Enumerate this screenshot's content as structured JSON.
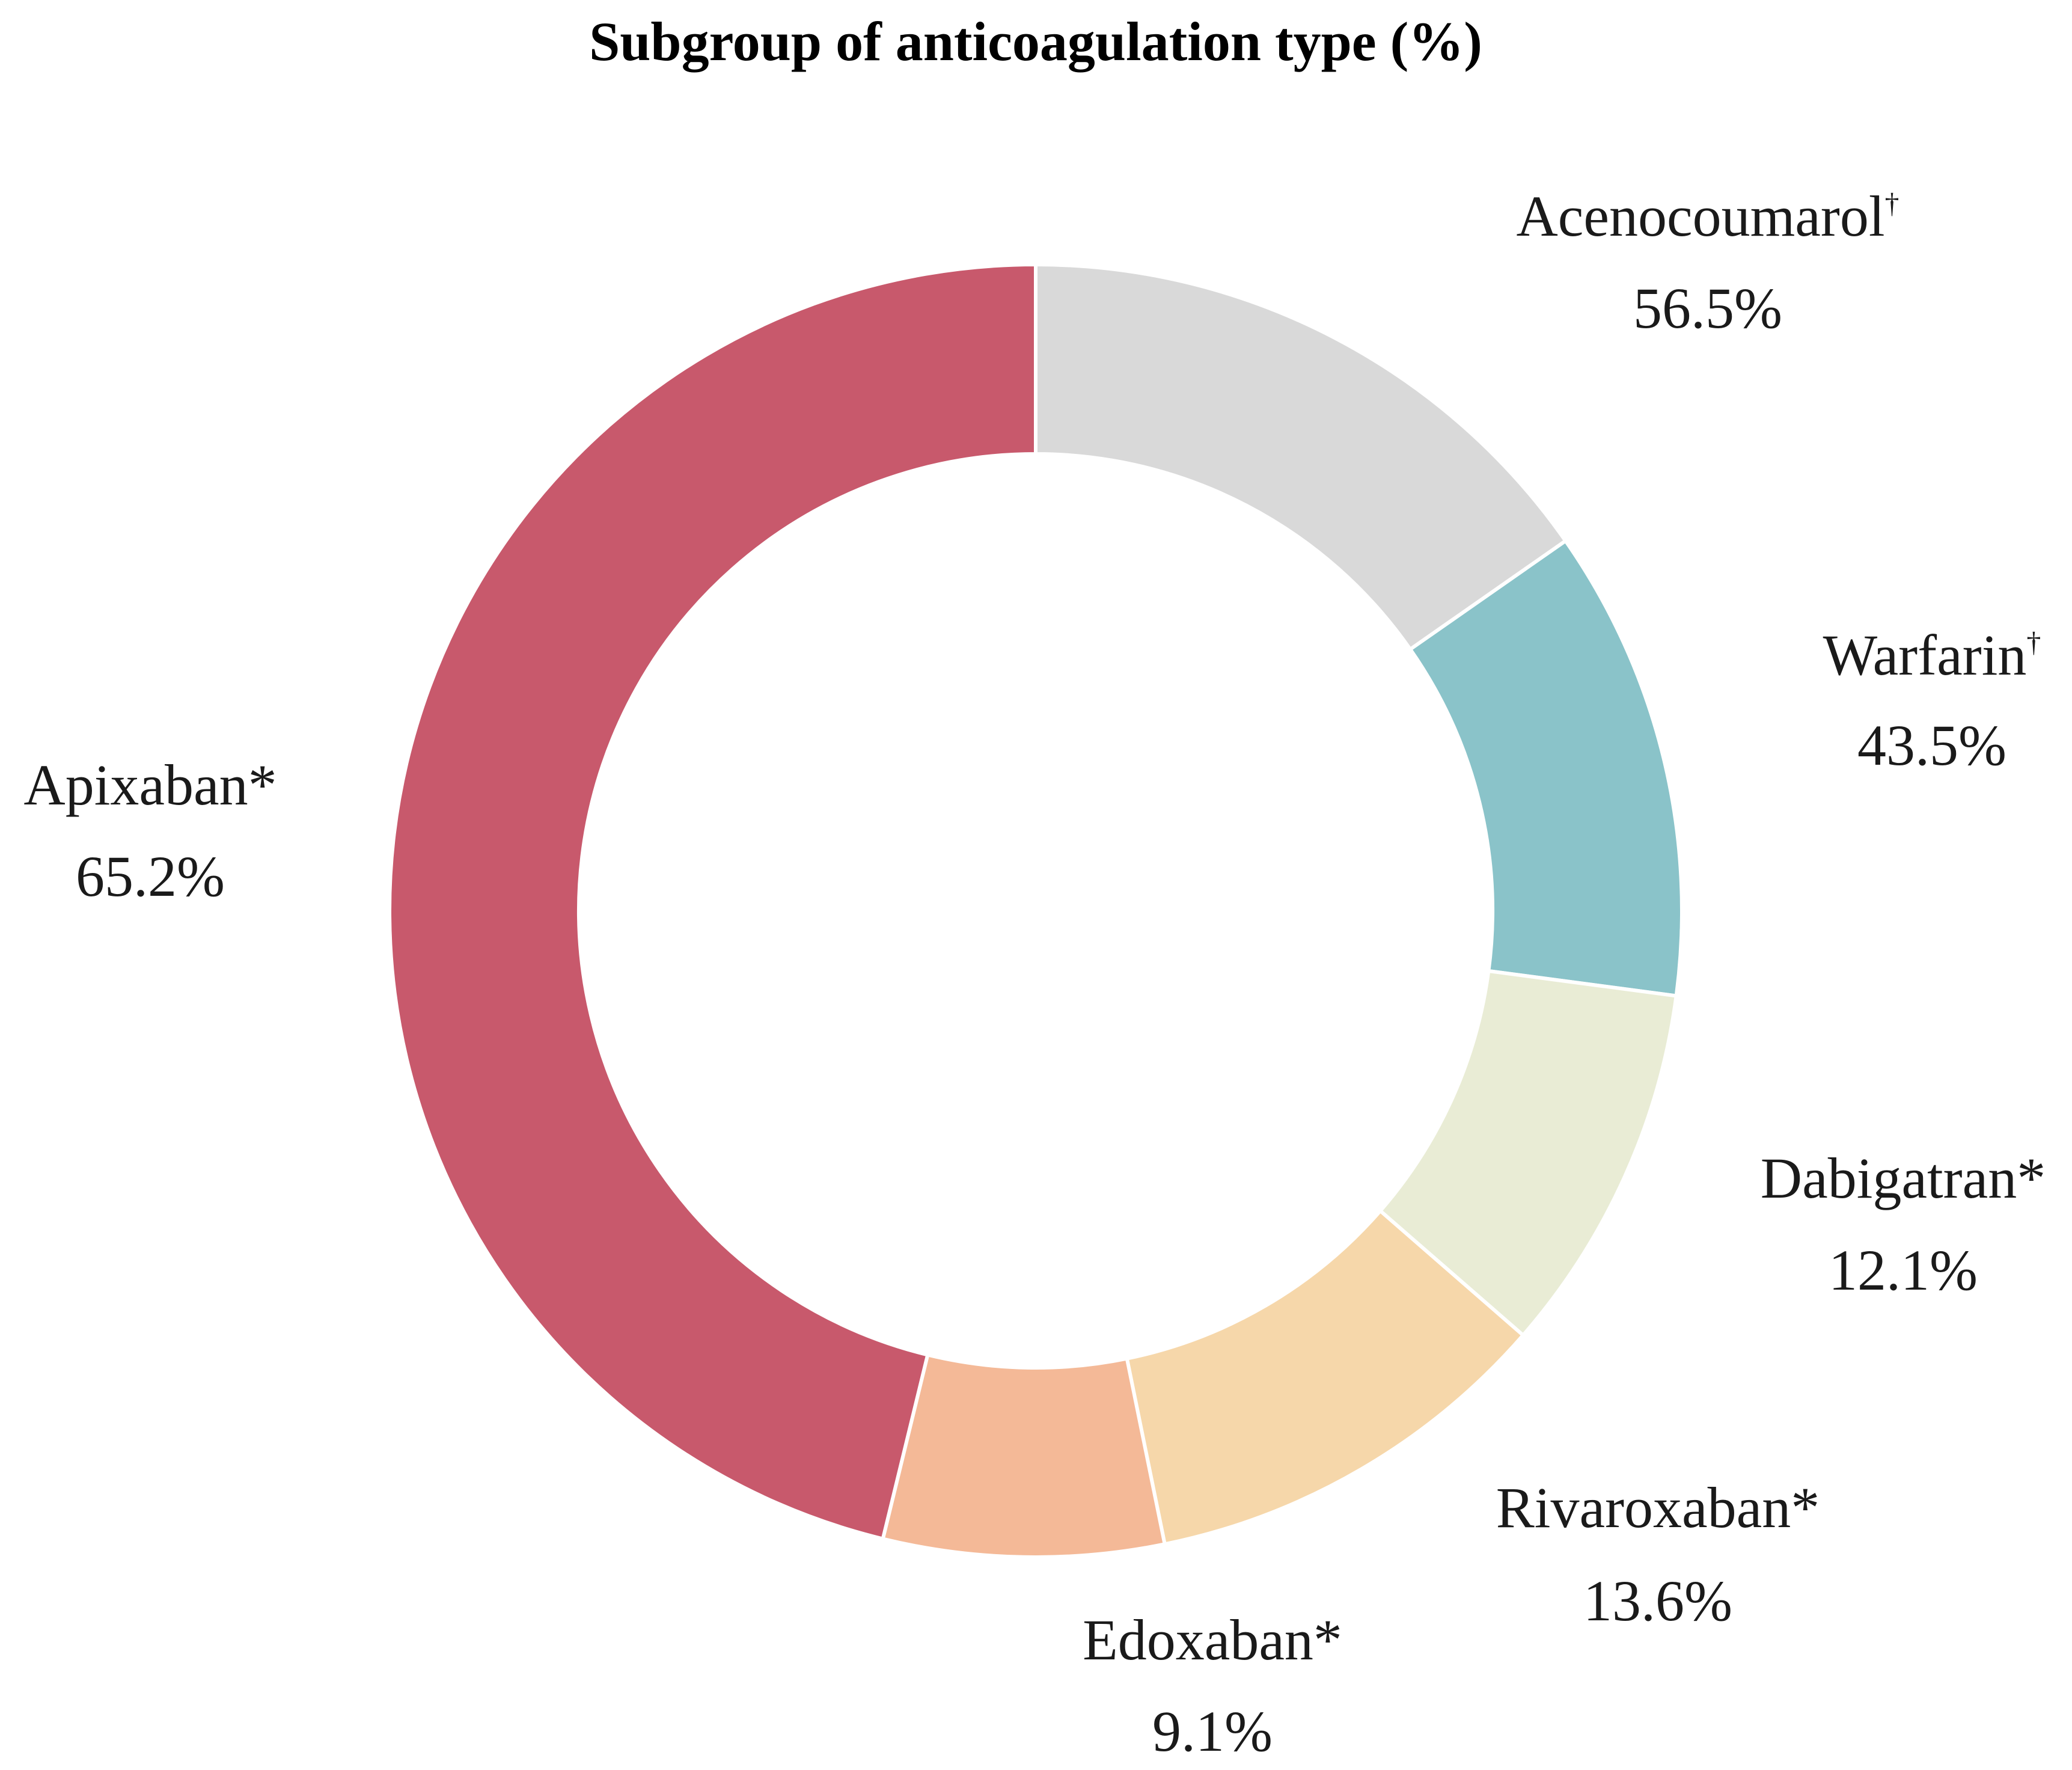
{
  "chart_data": {
    "type": "pie",
    "title": "Subgroup of anticoagulation type (%)",
    "slices": [
      {
        "label": "Acenocoumarol",
        "marker": "†",
        "value_label": "56.5%",
        "value": 56.5,
        "sweep_value": 15.3,
        "color": "#d9d9d9"
      },
      {
        "label": "Warfarin",
        "marker": "†",
        "value_label": "43.5%",
        "value": 43.5,
        "sweep_value": 11.8,
        "color": "#8ac3c9"
      },
      {
        "label": "Dabigatran*",
        "marker": "",
        "value_label": "12.1%",
        "value": 12.1,
        "sweep_value": 9.3,
        "color": "#e9ecd5"
      },
      {
        "label": "Rivaroxaban*",
        "marker": "",
        "value_label": "13.6%",
        "value": 13.6,
        "sweep_value": 10.4,
        "color": "#f6d7aa"
      },
      {
        "label": "Edoxaban*",
        "marker": "",
        "value_label": "9.1%",
        "value": 9.1,
        "sweep_value": 7.0,
        "color": "#f4b997"
      },
      {
        "label": "Apixaban*",
        "marker": "",
        "value_label": "65.2%",
        "value": 65.2,
        "sweep_value": 46.2,
        "color": "#c8596c"
      }
    ]
  }
}
